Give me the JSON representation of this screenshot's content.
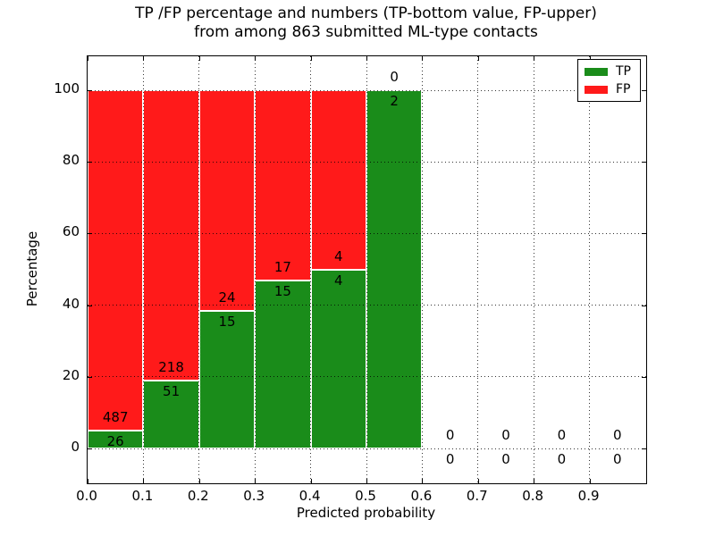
{
  "figure": {
    "title_line1": "TP /FP percentage and numbers (TP-bottom value, FP-upper)",
    "title_line2": "from among 863 submitted ML-type contacts",
    "total_contacts": 863
  },
  "legend": {
    "items": [
      {
        "label": "TP",
        "color": "#1a8c1a"
      },
      {
        "label": "FP",
        "color": "#ff1a1a"
      }
    ]
  },
  "chart_data": {
    "type": "bar",
    "stacked": true,
    "title": "TP /FP percentage and numbers (TP-bottom value, FP-upper)\nfrom among 863 submitted ML-type contacts",
    "xlabel": "Predicted probability",
    "ylabel": "Percentage",
    "xlim": [
      0.0,
      1.0
    ],
    "ylim": [
      -10,
      110
    ],
    "grid": true,
    "legend_position": "upper right",
    "x_ticks": [
      0.0,
      0.1,
      0.2,
      0.3,
      0.4,
      0.5,
      0.6,
      0.7,
      0.8,
      0.9
    ],
    "x_tick_labels": [
      "0.0",
      "0.1",
      "0.2",
      "0.3",
      "0.4",
      "0.5",
      "0.6",
      "0.7",
      "0.8",
      "0.9"
    ],
    "y_ticks": [
      0,
      20,
      40,
      60,
      80,
      100
    ],
    "y_tick_labels": [
      "0",
      "20",
      "40",
      "60",
      "80",
      "100"
    ],
    "bin_width": 0.1,
    "colors": {
      "tp": "#1a8c1a",
      "fp": "#ff1a1a"
    },
    "series": [
      {
        "name": "TP",
        "color": "#1a8c1a",
        "counts": [
          26,
          51,
          15,
          15,
          4,
          2,
          0,
          0,
          0,
          0
        ]
      },
      {
        "name": "FP",
        "color": "#ff1a1a",
        "counts": [
          487,
          218,
          24,
          17,
          4,
          0,
          0,
          0,
          0,
          0
        ]
      }
    ],
    "bins": [
      {
        "x0": 0.0,
        "x1": 0.1,
        "tp": 26,
        "fp": 487,
        "tp_pct": 5.07,
        "fp_pct": 94.93
      },
      {
        "x0": 0.1,
        "x1": 0.2,
        "tp": 51,
        "fp": 218,
        "tp_pct": 18.96,
        "fp_pct": 81.04
      },
      {
        "x0": 0.2,
        "x1": 0.3,
        "tp": 15,
        "fp": 24,
        "tp_pct": 38.46,
        "fp_pct": 61.54
      },
      {
        "x0": 0.3,
        "x1": 0.4,
        "tp": 15,
        "fp": 17,
        "tp_pct": 46.88,
        "fp_pct": 53.12
      },
      {
        "x0": 0.4,
        "x1": 0.5,
        "tp": 4,
        "fp": 4,
        "tp_pct": 50.0,
        "fp_pct": 50.0
      },
      {
        "x0": 0.5,
        "x1": 0.6,
        "tp": 2,
        "fp": 0,
        "tp_pct": 100.0,
        "fp_pct": 0.0
      },
      {
        "x0": 0.6,
        "x1": 0.7,
        "tp": 0,
        "fp": 0,
        "tp_pct": 0.0,
        "fp_pct": 0.0
      },
      {
        "x0": 0.7,
        "x1": 0.8,
        "tp": 0,
        "fp": 0,
        "tp_pct": 0.0,
        "fp_pct": 0.0
      },
      {
        "x0": 0.8,
        "x1": 0.9,
        "tp": 0,
        "fp": 0,
        "tp_pct": 0.0,
        "fp_pct": 0.0
      },
      {
        "x0": 0.9,
        "x1": 1.0,
        "tp": 0,
        "fp": 0,
        "tp_pct": 0.0,
        "fp_pct": 0.0
      }
    ]
  }
}
